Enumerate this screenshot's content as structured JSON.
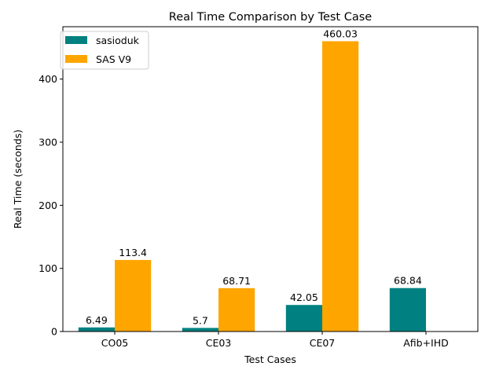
{
  "chart_data": {
    "type": "bar",
    "title": "Real Time Comparison by Test Case",
    "xlabel": "Test Cases",
    "ylabel": "Real Time (seconds)",
    "categories": [
      "CO05",
      "CE03",
      "CE07",
      "Afib+IHD"
    ],
    "series": [
      {
        "name": "sasioduk",
        "color": "#008080",
        "values": [
          6.49,
          5.7,
          42.05,
          68.84
        ],
        "labels": [
          "6.49",
          "5.7",
          "42.05",
          "68.84"
        ]
      },
      {
        "name": "SAS V9",
        "color": "#ffa500",
        "values": [
          113.4,
          68.71,
          460.03,
          null
        ],
        "labels": [
          "113.4",
          "68.71",
          "460.03",
          null
        ]
      }
    ],
    "ylim": [
      0,
      483
    ],
    "yticks": [
      0,
      100,
      200,
      300,
      400
    ],
    "grid": false,
    "legend_position": "top-left"
  }
}
